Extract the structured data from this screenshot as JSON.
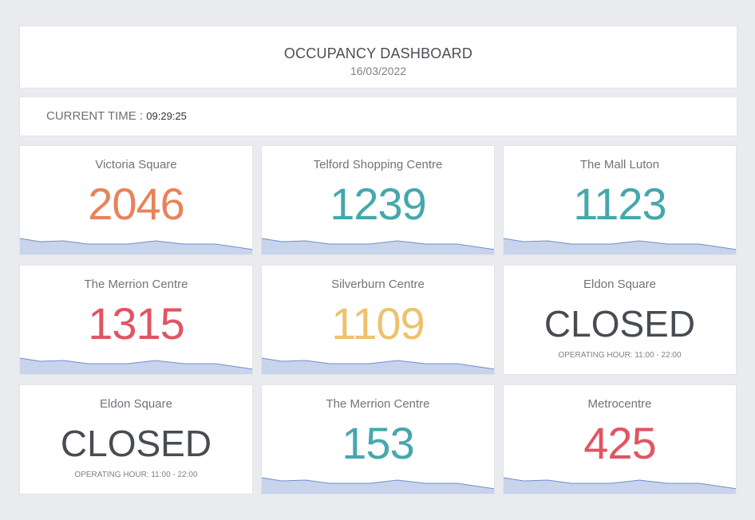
{
  "header": {
    "title": "OCCUPANCY DASHBOARD",
    "date": "16/03/2022"
  },
  "timebar": {
    "label": "CURRENT TIME :",
    "time": "09:29:25"
  },
  "colors": {
    "orange": "#e8825a",
    "teal": "#45a8ab",
    "red": "#e25462",
    "yellow": "#ecc26c",
    "dark": "#474c52",
    "spark_fill": "#c8d4ec",
    "spark_line": "#6f8ec9"
  },
  "cards": [
    {
      "name": "Victoria Square",
      "value": "2046",
      "color": "#e8825a",
      "closed": false
    },
    {
      "name": "Telford Shopping Centre",
      "value": "1239",
      "color": "#45a8ab",
      "closed": false
    },
    {
      "name": "The Mall Luton",
      "value": "1123",
      "color": "#45a8ab",
      "closed": false
    },
    {
      "name": "The Merrion Centre",
      "value": "1315",
      "color": "#e25462",
      "closed": false
    },
    {
      "name": "Silverburn Centre",
      "value": "1109",
      "color": "#ecc26c",
      "closed": false
    },
    {
      "name": "Eldon Square",
      "value": "CLOSED",
      "color": "#474c52",
      "closed": true,
      "hours": "OPERATING HOUR: 11:00 - 22:00"
    },
    {
      "name": "Eldon Square",
      "value": "CLOSED",
      "color": "#474c52",
      "closed": true,
      "hours": "OPERATING HOUR: 11:00 - 22:00"
    },
    {
      "name": "The Merrion Centre",
      "value": "153",
      "color": "#45a8ab",
      "closed": false
    },
    {
      "name": "Metrocentre",
      "value": "425",
      "color": "#e25462",
      "closed": false
    }
  ]
}
